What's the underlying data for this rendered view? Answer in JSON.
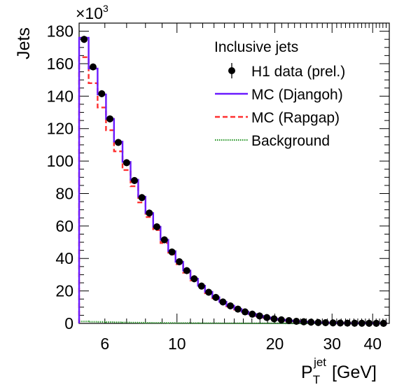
{
  "chart_data": {
    "type": "line",
    "title": "",
    "xlabel_main": "P",
    "xlabel_sub": "T",
    "xlabel_sup": "jet",
    "xlabel_unit": "[GeV]",
    "ylabel": "Jets",
    "y_multiplier": "×10",
    "y_multiplier_exp": "3",
    "xscale": "log",
    "xlim": [
      5,
      45
    ],
    "ylim": [
      0,
      185
    ],
    "x_ticks": [
      6,
      10,
      20,
      30,
      40
    ],
    "y_ticks": [
      0,
      20,
      40,
      60,
      80,
      100,
      120,
      140,
      160,
      180
    ],
    "grid": false,
    "legend_title": "Inclusive jets",
    "legend_position": "top-right",
    "bin_edges": [
      5.0,
      5.35,
      5.7,
      6.05,
      6.4,
      6.8,
      7.2,
      7.6,
      8.0,
      8.45,
      8.9,
      9.4,
      9.9,
      10.45,
      11.0,
      11.6,
      12.2,
      12.85,
      13.5,
      14.2,
      15.0,
      15.8,
      16.6,
      17.5,
      18.4,
      19.4,
      20.4,
      21.5,
      22.7,
      23.9,
      25.2,
      26.5,
      27.9,
      29.4,
      31.0,
      32.6,
      34.3,
      36.1,
      38.0,
      40.0,
      42.1,
      44.3
    ],
    "series": [
      {
        "name": "H1 data (prel.)",
        "style": "points",
        "color": "#000000",
        "x": [
          5.18,
          5.52,
          5.87,
          6.22,
          6.6,
          7.0,
          7.4,
          7.8,
          8.22,
          8.67,
          9.15,
          9.65,
          10.17,
          10.72,
          11.3,
          11.9,
          12.52,
          13.17,
          13.85,
          14.6,
          15.4,
          16.2,
          17.05,
          17.95,
          18.9,
          19.9,
          20.95,
          22.1,
          23.3,
          24.55,
          25.85,
          27.2,
          28.65,
          30.2,
          31.8,
          33.45,
          35.2,
          37.05,
          39.0,
          41.05,
          43.2
        ],
        "y": [
          175,
          158,
          141.5,
          126,
          111.5,
          99,
          88,
          77.5,
          68,
          59.5,
          51.5,
          44,
          38,
          32.5,
          27.5,
          23,
          19.2,
          16,
          13.2,
          10.8,
          8.8,
          7.1,
          5.7,
          4.6,
          3.6,
          2.8,
          2.2,
          1.7,
          1.3,
          1.0,
          0.75,
          0.55,
          0.42,
          0.32,
          0.24,
          0.18,
          0.13,
          0.1,
          0.07,
          0.05,
          0.04
        ]
      },
      {
        "name": "MC (Djangoh)",
        "style": "step-solid",
        "color": "#6a1bff",
        "values": [
          176,
          157,
          141,
          126,
          112,
          99.5,
          88.5,
          78,
          68,
          59.5,
          51.5,
          44.5,
          38,
          32.5,
          27.5,
          23.2,
          19.4,
          16.1,
          13.3,
          10.9,
          8.9,
          7.2,
          5.8,
          4.6,
          3.7,
          2.9,
          2.25,
          1.75,
          1.35,
          1.02,
          0.78,
          0.58,
          0.43,
          0.33,
          0.25,
          0.18,
          0.13,
          0.1,
          0.07,
          0.05,
          0.04
        ]
      },
      {
        "name": "MC (Rapgap)",
        "style": "step-dashed",
        "color": "#ff3030",
        "values": [
          164,
          148,
          133,
          119,
          106,
          94.5,
          84.5,
          74.5,
          65.5,
          57.5,
          49.5,
          42.5,
          36.5,
          31.2,
          26.5,
          22.3,
          18.6,
          15.5,
          12.8,
          10.5,
          8.5,
          6.9,
          5.5,
          4.4,
          3.5,
          2.75,
          2.15,
          1.65,
          1.28,
          0.97,
          0.74,
          0.55,
          0.41,
          0.31,
          0.23,
          0.17,
          0.12,
          0.09,
          0.065,
          0.045,
          0.035
        ]
      },
      {
        "name": "Background",
        "style": "step-dotted",
        "color": "#2e9a2e",
        "values": [
          1.2,
          1.0,
          0.9,
          0.8,
          0.7,
          0.6,
          0.5,
          0.45,
          0.4,
          0.35,
          0.3,
          0.25,
          0.22,
          0.2,
          0.17,
          0.15,
          0.13,
          0.11,
          0.1,
          0.08,
          0.07,
          0.06,
          0.05,
          0.04,
          0.035,
          0.03,
          0.025,
          0.02,
          0.015,
          0.012,
          0.01,
          0.008,
          0.006,
          0.005,
          0.004,
          0.003,
          0.002,
          0.002,
          0.001,
          0.001,
          0.001
        ]
      }
    ]
  }
}
